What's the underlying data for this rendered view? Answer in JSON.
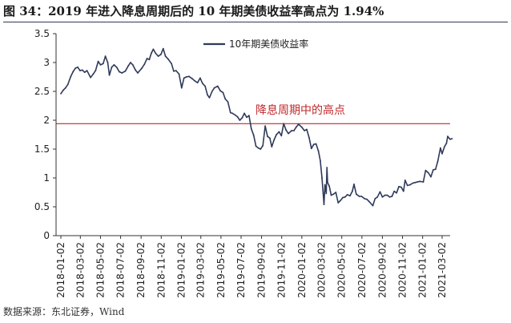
{
  "title": "图 34：2019 年进入降息周期后的 10 年期美债收益率高点为 1.94%",
  "source": "数据来源：东北证券，Wind",
  "colors": {
    "series": "#2f3a5a",
    "reference": "#c0282d",
    "axis": "#333333",
    "title_rule": "#2f3a5a"
  },
  "chart_data": {
    "type": "line",
    "title": "",
    "xlabel": "",
    "ylabel": "",
    "ylim": [
      0,
      3.5
    ],
    "yticks": [
      "0",
      "0.5",
      "1",
      "1.5",
      "2",
      "2.5",
      "3",
      "3.5"
    ],
    "xlim": [
      "2018-01-02",
      "2021-03-02"
    ],
    "xticks": [
      "2018-01-02",
      "2018-03-02",
      "2018-05-02",
      "2018-07-02",
      "2018-09-02",
      "2018-11-02",
      "2019-01-02",
      "2019-03-02",
      "2019-05-02",
      "2019-07-02",
      "2019-09-02",
      "2019-11-02",
      "2020-01-02",
      "2020-03-02",
      "2020-05-02",
      "2020-07-02",
      "2020-09-02",
      "2020-11-02",
      "2021-01-02",
      "2021-03-02"
    ],
    "grid": false,
    "legend_position": "top-center",
    "series": [
      {
        "name": "10年期美债收益率",
        "points": [
          [
            "2018-01-02",
            2.46
          ],
          [
            "2018-01-09",
            2.52
          ],
          [
            "2018-01-16",
            2.56
          ],
          [
            "2018-01-23",
            2.62
          ],
          [
            "2018-02-01",
            2.76
          ],
          [
            "2018-02-08",
            2.84
          ],
          [
            "2018-02-15",
            2.9
          ],
          [
            "2018-02-22",
            2.92
          ],
          [
            "2018-03-01",
            2.86
          ],
          [
            "2018-03-08",
            2.87
          ],
          [
            "2018-03-15",
            2.83
          ],
          [
            "2018-03-22",
            2.86
          ],
          [
            "2018-04-02",
            2.74
          ],
          [
            "2018-04-10",
            2.8
          ],
          [
            "2018-04-17",
            2.86
          ],
          [
            "2018-04-25",
            3.02
          ],
          [
            "2018-05-02",
            2.96
          ],
          [
            "2018-05-10",
            2.98
          ],
          [
            "2018-05-17",
            3.11
          ],
          [
            "2018-05-24",
            3.0
          ],
          [
            "2018-05-29",
            2.78
          ],
          [
            "2018-06-05",
            2.92
          ],
          [
            "2018-06-12",
            2.96
          ],
          [
            "2018-06-20",
            2.92
          ],
          [
            "2018-06-28",
            2.84
          ],
          [
            "2018-07-06",
            2.82
          ],
          [
            "2018-07-16",
            2.85
          ],
          [
            "2018-07-25",
            2.94
          ],
          [
            "2018-08-01",
            3.0
          ],
          [
            "2018-08-08",
            2.96
          ],
          [
            "2018-08-16",
            2.87
          ],
          [
            "2018-08-23",
            2.82
          ],
          [
            "2018-09-04",
            2.9
          ],
          [
            "2018-09-12",
            2.97
          ],
          [
            "2018-09-20",
            3.07
          ],
          [
            "2018-09-27",
            3.05
          ],
          [
            "2018-10-03",
            3.16
          ],
          [
            "2018-10-09",
            3.23
          ],
          [
            "2018-10-16",
            3.16
          ],
          [
            "2018-10-24",
            3.11
          ],
          [
            "2018-11-01",
            3.14
          ],
          [
            "2018-11-08",
            3.24
          ],
          [
            "2018-11-15",
            3.11
          ],
          [
            "2018-11-23",
            3.06
          ],
          [
            "2018-12-03",
            2.98
          ],
          [
            "2018-12-10",
            2.85
          ],
          [
            "2018-12-17",
            2.86
          ],
          [
            "2018-12-26",
            2.8
          ],
          [
            "2019-01-03",
            2.56
          ],
          [
            "2019-01-10",
            2.73
          ],
          [
            "2019-01-17",
            2.75
          ],
          [
            "2019-01-25",
            2.76
          ],
          [
            "2019-02-04",
            2.72
          ],
          [
            "2019-02-12",
            2.68
          ],
          [
            "2019-02-20",
            2.65
          ],
          [
            "2019-02-28",
            2.73
          ],
          [
            "2019-03-07",
            2.64
          ],
          [
            "2019-03-15",
            2.59
          ],
          [
            "2019-03-22",
            2.44
          ],
          [
            "2019-03-28",
            2.39
          ],
          [
            "2019-04-05",
            2.5
          ],
          [
            "2019-04-12",
            2.56
          ],
          [
            "2019-04-22",
            2.59
          ],
          [
            "2019-04-30",
            2.51
          ],
          [
            "2019-05-08",
            2.48
          ],
          [
            "2019-05-15",
            2.37
          ],
          [
            "2019-05-23",
            2.32
          ],
          [
            "2019-05-31",
            2.13
          ],
          [
            "2019-06-06",
            2.12
          ],
          [
            "2019-06-14",
            2.09
          ],
          [
            "2019-06-21",
            2.06
          ],
          [
            "2019-06-28",
            2.0
          ],
          [
            "2019-07-05",
            2.04
          ],
          [
            "2019-07-12",
            2.12
          ],
          [
            "2019-07-19",
            2.05
          ],
          [
            "2019-07-26",
            2.08
          ],
          [
            "2019-08-02",
            1.85
          ],
          [
            "2019-08-09",
            1.74
          ],
          [
            "2019-08-16",
            1.55
          ],
          [
            "2019-08-23",
            1.52
          ],
          [
            "2019-08-30",
            1.5
          ],
          [
            "2019-09-06",
            1.56
          ],
          [
            "2019-09-13",
            1.9
          ],
          [
            "2019-09-20",
            1.72
          ],
          [
            "2019-09-27",
            1.69
          ],
          [
            "2019-10-03",
            1.54
          ],
          [
            "2019-10-10",
            1.66
          ],
          [
            "2019-10-17",
            1.75
          ],
          [
            "2019-10-25",
            1.8
          ],
          [
            "2019-11-01",
            1.73
          ],
          [
            "2019-11-08",
            1.94
          ],
          [
            "2019-11-15",
            1.83
          ],
          [
            "2019-11-22",
            1.77
          ],
          [
            "2019-12-02",
            1.82
          ],
          [
            "2019-12-09",
            1.82
          ],
          [
            "2019-12-16",
            1.88
          ],
          [
            "2019-12-23",
            1.93
          ],
          [
            "2020-01-02",
            1.88
          ],
          [
            "2020-01-10",
            1.82
          ],
          [
            "2020-01-17",
            1.84
          ],
          [
            "2020-01-24",
            1.7
          ],
          [
            "2020-01-31",
            1.51
          ],
          [
            "2020-02-07",
            1.58
          ],
          [
            "2020-02-14",
            1.59
          ],
          [
            "2020-02-21",
            1.47
          ],
          [
            "2020-02-27",
            1.3
          ],
          [
            "2020-03-03",
            1.0
          ],
          [
            "2020-03-09",
            0.54
          ],
          [
            "2020-03-12",
            0.88
          ],
          [
            "2020-03-16",
            0.73
          ],
          [
            "2020-03-18",
            1.18
          ],
          [
            "2020-03-20",
            0.92
          ],
          [
            "2020-03-25",
            0.86
          ],
          [
            "2020-03-31",
            0.7
          ],
          [
            "2020-04-07",
            0.72
          ],
          [
            "2020-04-14",
            0.75
          ],
          [
            "2020-04-21",
            0.57
          ],
          [
            "2020-04-28",
            0.61
          ],
          [
            "2020-05-05",
            0.66
          ],
          [
            "2020-05-12",
            0.67
          ],
          [
            "2020-05-19",
            0.71
          ],
          [
            "2020-05-27",
            0.69
          ],
          [
            "2020-06-03",
            0.77
          ],
          [
            "2020-06-08",
            0.89
          ],
          [
            "2020-06-15",
            0.72
          ],
          [
            "2020-06-24",
            0.68
          ],
          [
            "2020-07-01",
            0.68
          ],
          [
            "2020-07-10",
            0.64
          ],
          [
            "2020-07-17",
            0.63
          ],
          [
            "2020-07-24",
            0.59
          ],
          [
            "2020-08-04",
            0.52
          ],
          [
            "2020-08-11",
            0.64
          ],
          [
            "2020-08-18",
            0.67
          ],
          [
            "2020-08-26",
            0.76
          ],
          [
            "2020-09-02",
            0.67
          ],
          [
            "2020-09-10",
            0.7
          ],
          [
            "2020-09-17",
            0.7
          ],
          [
            "2020-09-24",
            0.67
          ],
          [
            "2020-10-01",
            0.68
          ],
          [
            "2020-10-08",
            0.77
          ],
          [
            "2020-10-15",
            0.74
          ],
          [
            "2020-10-22",
            0.85
          ],
          [
            "2020-10-29",
            0.84
          ],
          [
            "2020-11-05",
            0.77
          ],
          [
            "2020-11-10",
            0.96
          ],
          [
            "2020-11-17",
            0.87
          ],
          [
            "2020-11-25",
            0.88
          ],
          [
            "2020-12-03",
            0.91
          ],
          [
            "2020-12-10",
            0.92
          ],
          [
            "2020-12-17",
            0.93
          ],
          [
            "2020-12-24",
            0.94
          ],
          [
            "2021-01-04",
            0.93
          ],
          [
            "2021-01-11",
            1.13
          ],
          [
            "2021-01-19",
            1.09
          ],
          [
            "2021-01-27",
            1.02
          ],
          [
            "2021-02-03",
            1.14
          ],
          [
            "2021-02-10",
            1.15
          ],
          [
            "2021-02-17",
            1.29
          ],
          [
            "2021-02-25",
            1.52
          ],
          [
            "2021-03-02",
            1.42
          ],
          [
            "2021-03-09",
            1.54
          ],
          [
            "2021-03-15",
            1.6
          ],
          [
            "2021-03-19",
            1.72
          ],
          [
            "2021-03-26",
            1.67
          ],
          [
            "2021-04-01",
            1.68
          ]
        ]
      }
    ],
    "reference_line": {
      "y": 1.94
    },
    "annotations": [
      {
        "text": "降息周期中的高点"
      }
    ]
  }
}
